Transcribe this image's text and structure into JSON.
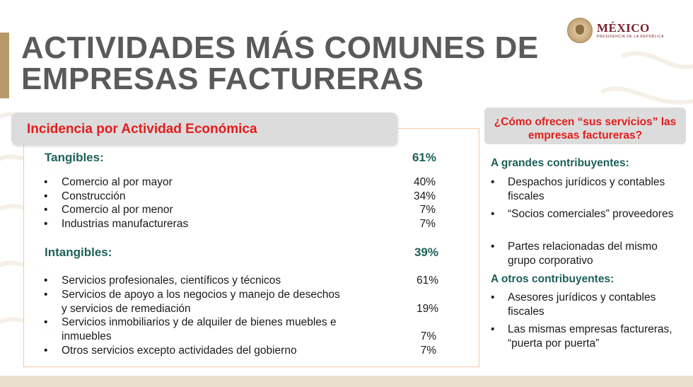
{
  "header": {
    "title_line1": "ACTIVIDADES MÁS COMUNES DE",
    "title_line2": "EMPRESAS FACTURERAS"
  },
  "logo": {
    "country": "MÉXICO",
    "subtitle": "PRESIDENCIA DE LA REPÚBLICA"
  },
  "left": {
    "header": "Incidencia por Actividad Económica",
    "tangibles": {
      "label": "Tangibles:",
      "pct": "61%",
      "items": [
        {
          "text": "Comercio al por mayor",
          "pct": "40%"
        },
        {
          "text": "Construcción",
          "pct": "34%"
        },
        {
          "text": "Comercio al por menor",
          "pct": "7%"
        },
        {
          "text": "Industrias manufactureras",
          "pct": "7%"
        }
      ]
    },
    "intangibles": {
      "label": "Intangibles:",
      "pct": "39%",
      "items": [
        {
          "text": "Servicios profesionales, científicos y técnicos",
          "pct": "61%"
        },
        {
          "text": "Servicios de apoyo a los negocios y manejo de desechos y servicios de remediación",
          "pct": "19%"
        },
        {
          "text": "Servicios inmobiliarios y de alquiler de bienes muebles e inmuebles",
          "pct": "7%"
        },
        {
          "text": "Otros servicios excepto actividades del gobierno",
          "pct": "7%"
        }
      ]
    }
  },
  "right": {
    "header": "¿Cómo ofrecen “sus servicios” las empresas factureras?",
    "grandes": {
      "label": "A grandes contribuyentes:",
      "items": [
        "Despachos jurídicos y contables fiscales",
        "“Socios comerciales” proveedores",
        "Partes relacionadas del mismo grupo corporativo"
      ]
    },
    "otros": {
      "label": "A otros contribuyentes:",
      "items": [
        "Asesores jurídicos y contables fiscales",
        "Las mismas empresas factureras, “puerta por puerta”"
      ]
    }
  },
  "bullet": "•",
  "colors": {
    "accent_gold": "#b89a6a",
    "heading_red": "#e31d1d",
    "category_green": "#1d6158",
    "brand_maroon": "#7b1e2b"
  }
}
